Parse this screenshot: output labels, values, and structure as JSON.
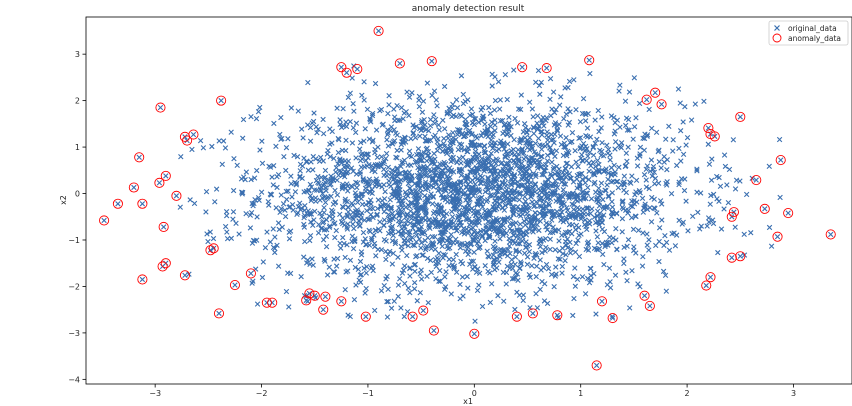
{
  "chart_data": {
    "type": "scatter",
    "title": "anomaly detection result",
    "xlabel": "x1",
    "ylabel": "x2",
    "xlim": [
      -3.65,
      3.55
    ],
    "ylim": [
      -4.1,
      3.8
    ],
    "x_ticks": [
      -3,
      -2,
      -1,
      0,
      1,
      2,
      3
    ],
    "y_ticks": [
      -4,
      -3,
      -2,
      -1,
      0,
      1,
      2,
      3
    ],
    "grid": false,
    "legend_position": "top-right",
    "series": [
      {
        "name": "original_data",
        "marker": "x",
        "color": "#3a6fb0",
        "distribution": "gaussian",
        "count": 3000,
        "mean": [
          0,
          0
        ],
        "std": [
          1.0,
          1.0
        ]
      },
      {
        "name": "anomaly_data",
        "marker": "circle-open",
        "color": "#ff0000",
        "points": [
          [
            -0.9,
            3.5
          ],
          [
            -0.4,
            2.85
          ],
          [
            -0.7,
            2.8
          ],
          [
            -1.25,
            2.72
          ],
          [
            -1.2,
            2.6
          ],
          [
            -1.1,
            2.68
          ],
          [
            0.45,
            2.72
          ],
          [
            0.68,
            2.7
          ],
          [
            1.08,
            2.87
          ],
          [
            -2.95,
            1.85
          ],
          [
            -2.38,
            2.0
          ],
          [
            1.62,
            2.02
          ],
          [
            1.7,
            2.17
          ],
          [
            1.76,
            1.92
          ],
          [
            2.5,
            1.65
          ],
          [
            2.2,
            1.41
          ],
          [
            2.22,
            1.28
          ],
          [
            2.26,
            1.23
          ],
          [
            -2.72,
            1.22
          ],
          [
            -2.64,
            1.27
          ],
          [
            -2.7,
            1.14
          ],
          [
            -3.15,
            0.78
          ],
          [
            -2.9,
            0.38
          ],
          [
            -2.96,
            0.23
          ],
          [
            -3.2,
            0.13
          ],
          [
            -2.8,
            -0.05
          ],
          [
            -3.35,
            -0.22
          ],
          [
            -3.12,
            -0.22
          ],
          [
            -3.48,
            -0.58
          ],
          [
            -2.92,
            -0.72
          ],
          [
            2.88,
            0.72
          ],
          [
            2.65,
            0.29
          ],
          [
            2.44,
            -0.4
          ],
          [
            2.42,
            -0.5
          ],
          [
            2.73,
            -0.33
          ],
          [
            2.95,
            -0.42
          ],
          [
            2.85,
            -0.93
          ],
          [
            3.35,
            -0.88
          ],
          [
            -2.45,
            -1.18
          ],
          [
            -2.48,
            -1.22
          ],
          [
            -2.1,
            -1.72
          ],
          [
            -2.25,
            -1.97
          ],
          [
            -2.9,
            -1.5
          ],
          [
            -2.93,
            -1.57
          ],
          [
            -2.72,
            -1.76
          ],
          [
            -3.12,
            -1.85
          ],
          [
            -2.4,
            -2.58
          ],
          [
            2.42,
            -1.38
          ],
          [
            2.5,
            -1.35
          ],
          [
            2.22,
            -1.8
          ],
          [
            2.18,
            -1.98
          ],
          [
            -1.95,
            -2.35
          ],
          [
            -1.9,
            -2.35
          ],
          [
            -1.55,
            -2.15
          ],
          [
            -1.5,
            -2.2
          ],
          [
            -1.58,
            -2.3
          ],
          [
            -1.4,
            -2.22
          ],
          [
            -1.25,
            -2.32
          ],
          [
            -1.42,
            -2.5
          ],
          [
            -1.02,
            -2.65
          ],
          [
            -0.58,
            -2.65
          ],
          [
            -0.48,
            -2.52
          ],
          [
            -0.38,
            -2.95
          ],
          [
            0.0,
            -3.02
          ],
          [
            0.4,
            -2.65
          ],
          [
            0.55,
            -2.58
          ],
          [
            0.78,
            -2.62
          ],
          [
            1.2,
            -2.32
          ],
          [
            1.3,
            -2.68
          ],
          [
            1.6,
            -2.2
          ],
          [
            1.65,
            -2.42
          ],
          [
            1.15,
            -3.7
          ]
        ]
      }
    ]
  }
}
